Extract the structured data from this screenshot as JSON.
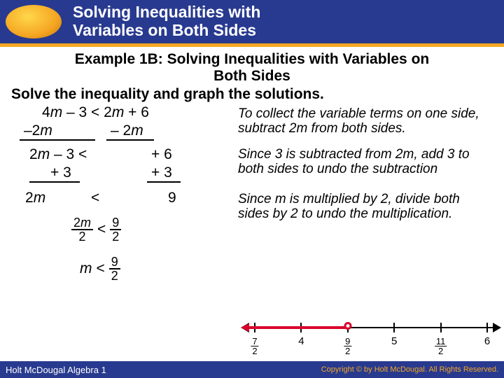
{
  "header": {
    "title_line1": "Solving Inequalities with",
    "title_line2": "Variables on Both Sides",
    "bg_color": "#283a8f",
    "accent_color": "#f5a623"
  },
  "example": {
    "title_line1": "Example 1B: Solving Inequalities with Variables on",
    "title_line2": "Both Sides",
    "instruction": "Solve the inequality and graph the solutions.",
    "problem": "4m – 3 < 2m + 6",
    "step1_left": "–2m",
    "step1_right": "– 2m",
    "step2_left": "2m – 3 <",
    "step2_right": "+ 6",
    "step3_left": "+ 3",
    "step3_right": "+ 3",
    "step4_left": "2m",
    "step4_mid": "<",
    "step4_right": "9",
    "frac_2m": "2m",
    "frac_2": "2",
    "frac_9": "9",
    "lt": "<",
    "final_m": "m",
    "note1": "To collect the variable terms on one side, subtract 2m from both sides.",
    "note2": "Since 3 is subtracted from 2m, add 3 to both sides to undo the subtraction",
    "note3": "Since m is multiplied by 2, divide both sides by 2 to undo the multiplication."
  },
  "numberline": {
    "min": 3.5,
    "max": 6.0,
    "solution_end": 4.5,
    "open_circle": true,
    "ray_direction": "left",
    "ticks": [
      {
        "x": 3.5,
        "label_num": "7",
        "label_den": "2"
      },
      {
        "x": 4.0,
        "label": "4"
      },
      {
        "x": 4.5,
        "label_num": "9",
        "label_den": "2"
      },
      {
        "x": 5.0,
        "label": "5"
      },
      {
        "x": 5.5,
        "label_num": "11",
        "label_den": "2"
      },
      {
        "x": 6.0,
        "label": "6"
      }
    ],
    "axis_color": "#000000",
    "solution_color": "#d9042b"
  },
  "footer": {
    "left": "Holt McDougal Algebra 1",
    "right": "Copyright © by Holt McDougal. All Rights Reserved."
  }
}
